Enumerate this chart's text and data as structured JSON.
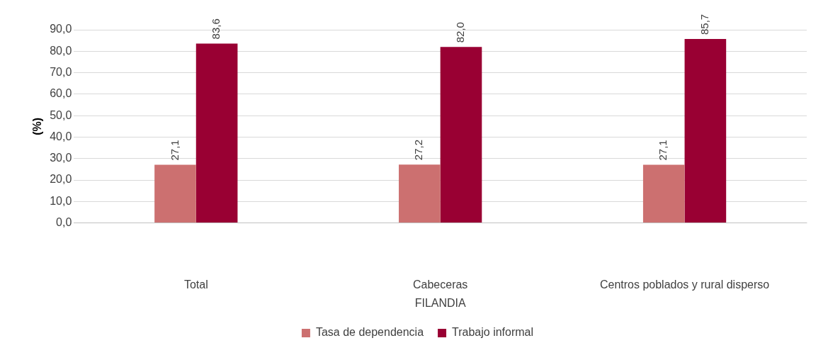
{
  "chart_data": {
    "type": "bar",
    "ylabel": "(%)",
    "xlabel": "FILANDIA",
    "categories": [
      "Total",
      "Cabeceras",
      "Centros poblados y rural disperso"
    ],
    "series": [
      {
        "name": "Tasa de dependencia",
        "color": "#cc7070",
        "values": [
          27.1,
          27.2,
          27.1
        ],
        "value_labels": [
          "27,1",
          "27,2",
          "27,1"
        ]
      },
      {
        "name": "Trabajo informal",
        "color": "#990033",
        "values": [
          83.6,
          82.0,
          85.7
        ],
        "value_labels": [
          "83,6",
          "82,0",
          "85,7"
        ]
      }
    ],
    "ylim": [
      0,
      90
    ],
    "yticks": [
      {
        "value": 0,
        "label": "0,0"
      },
      {
        "value": 10,
        "label": "10,0"
      },
      {
        "value": 20,
        "label": "20,0"
      },
      {
        "value": 30,
        "label": "30,0"
      },
      {
        "value": 40,
        "label": "40,0"
      },
      {
        "value": 50,
        "label": "50,0"
      },
      {
        "value": 60,
        "label": "60,0"
      },
      {
        "value": 70,
        "label": "70,0"
      },
      {
        "value": 80,
        "label": "80,0"
      },
      {
        "value": 90,
        "label": "90,0"
      }
    ],
    "grid": "y",
    "legend": "bottom"
  }
}
